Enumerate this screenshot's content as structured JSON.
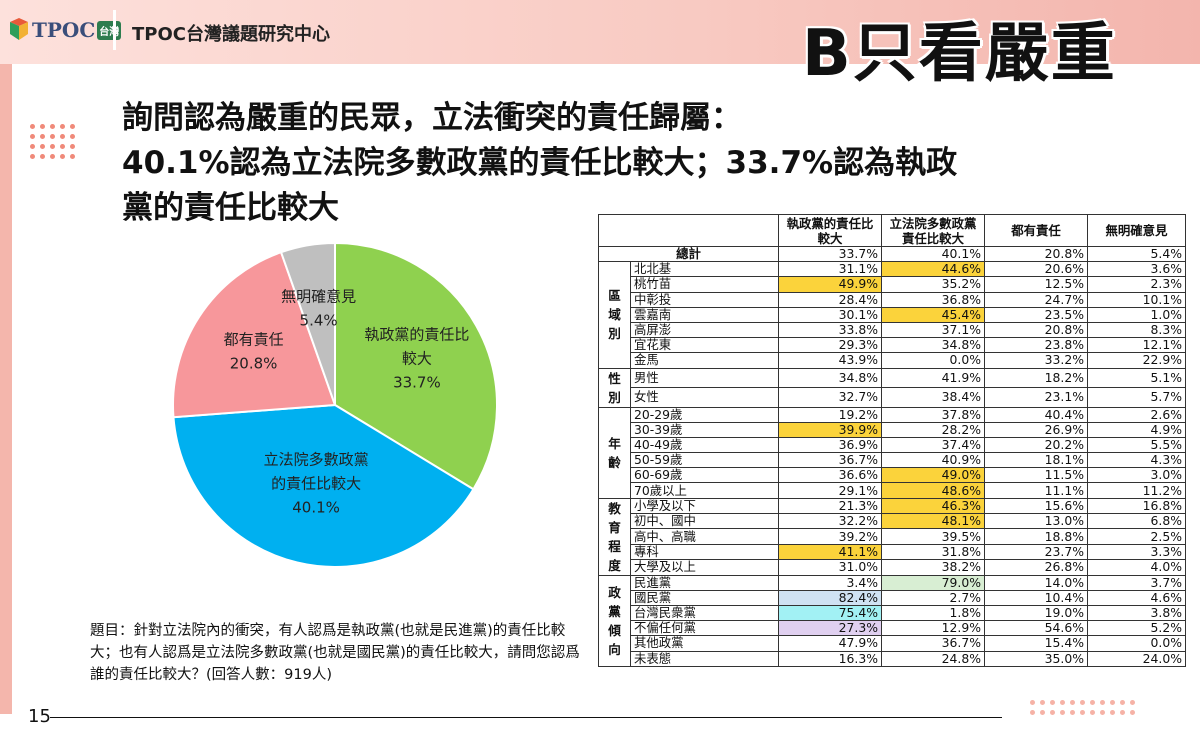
{
  "header": {
    "logo_text": "TPOC",
    "logo_badge": "台灣",
    "org_name": "TPOC台灣議題研究中心",
    "stamp": "B只看嚴重"
  },
  "headline": {
    "line1": "詢問認為嚴重的民眾，立法衝突的責任歸屬：",
    "line2": "40.1%認為立法院多數政黨的責任比較大；33.7%認為執政",
    "line3": "黨的責任比較大"
  },
  "chart_data": {
    "type": "pie",
    "slices": [
      {
        "label": "執政黨的責任比較大",
        "label_lines": [
          "執政黨的責任比",
          "較大"
        ],
        "value": 33.7,
        "value_text": "33.7%",
        "color": "#8fd14f"
      },
      {
        "label": "立法院多數政黨的責任比較大",
        "label_lines": [
          "立法院多數政黨",
          "的責任比較大"
        ],
        "value": 40.1,
        "value_text": "40.1%",
        "color": "#00b0f0"
      },
      {
        "label": "都有責任",
        "label_lines": [
          "都有責任"
        ],
        "value": 20.8,
        "value_text": "20.8%",
        "color": "#f7979b"
      },
      {
        "label": "無明確意見",
        "label_lines": [
          "無明確意見"
        ],
        "value": 5.4,
        "value_text": "5.4%",
        "color": "#bfbfbf"
      }
    ],
    "start_angle_deg": 0,
    "direction": "clockwise"
  },
  "note": {
    "text": "題目：針對立法院內的衝突，有人認爲是執政黨(也就是民進黨)的責任比較大；也有人認爲是立法院多數政黨(也就是國民黨)的責任比較大，請問您認爲誰的責任比較大？(回答人數：919人)"
  },
  "table": {
    "columns": [
      "執政黨的責任比較大",
      "立法院多數政黨責任比較大",
      "都有責任",
      "無明確意見"
    ],
    "total": {
      "label": "總計",
      "values": [
        "33.7%",
        "40.1%",
        "20.8%",
        "5.4%"
      ]
    },
    "groups": [
      {
        "name": "區域別",
        "rows": [
          {
            "label": "北北基",
            "values": [
              "31.1%",
              "44.6%",
              "20.6%",
              "3.6%"
            ],
            "hl": [
              null,
              "y",
              null,
              null
            ]
          },
          {
            "label": "桃竹苗",
            "values": [
              "49.9%",
              "35.2%",
              "12.5%",
              "2.3%"
            ],
            "hl": [
              "y",
              null,
              null,
              null
            ]
          },
          {
            "label": "中彰投",
            "values": [
              "28.4%",
              "36.8%",
              "24.7%",
              "10.1%"
            ],
            "hl": [
              null,
              null,
              null,
              null
            ]
          },
          {
            "label": "雲嘉南",
            "values": [
              "30.1%",
              "45.4%",
              "23.5%",
              "1.0%"
            ],
            "hl": [
              null,
              "y",
              null,
              null
            ]
          },
          {
            "label": "高屏澎",
            "values": [
              "33.8%",
              "37.1%",
              "20.8%",
              "8.3%"
            ],
            "hl": [
              null,
              null,
              null,
              null
            ]
          },
          {
            "label": "宜花東",
            "values": [
              "29.3%",
              "34.8%",
              "23.8%",
              "12.1%"
            ],
            "hl": [
              null,
              null,
              null,
              null
            ]
          },
          {
            "label": "金馬",
            "values": [
              "43.9%",
              "0.0%",
              "33.2%",
              "22.9%"
            ],
            "hl": [
              null,
              null,
              null,
              null
            ]
          }
        ]
      },
      {
        "name": "性別",
        "rows": [
          {
            "label": "男性",
            "values": [
              "34.8%",
              "41.9%",
              "18.2%",
              "5.1%"
            ],
            "hl": [
              null,
              null,
              null,
              null
            ]
          },
          {
            "label": "女性",
            "values": [
              "32.7%",
              "38.4%",
              "23.1%",
              "5.7%"
            ],
            "hl": [
              null,
              null,
              null,
              null
            ]
          }
        ]
      },
      {
        "name": "年齡",
        "rows": [
          {
            "label": "20-29歲",
            "values": [
              "19.2%",
              "37.8%",
              "40.4%",
              "2.6%"
            ],
            "hl": [
              null,
              null,
              null,
              null
            ]
          },
          {
            "label": "30-39歲",
            "values": [
              "39.9%",
              "28.2%",
              "26.9%",
              "4.9%"
            ],
            "hl": [
              "y",
              null,
              null,
              null
            ]
          },
          {
            "label": "40-49歲",
            "values": [
              "36.9%",
              "37.4%",
              "20.2%",
              "5.5%"
            ],
            "hl": [
              null,
              null,
              null,
              null
            ]
          },
          {
            "label": "50-59歲",
            "values": [
              "36.7%",
              "40.9%",
              "18.1%",
              "4.3%"
            ],
            "hl": [
              null,
              null,
              null,
              null
            ]
          },
          {
            "label": "60-69歲",
            "values": [
              "36.6%",
              "49.0%",
              "11.5%",
              "3.0%"
            ],
            "hl": [
              null,
              "y",
              null,
              null
            ]
          },
          {
            "label": "70歲以上",
            "values": [
              "29.1%",
              "48.6%",
              "11.1%",
              "11.2%"
            ],
            "hl": [
              null,
              "y",
              null,
              null
            ]
          }
        ]
      },
      {
        "name": "教育程度",
        "rows": [
          {
            "label": "小學及以下",
            "values": [
              "21.3%",
              "46.3%",
              "15.6%",
              "16.8%"
            ],
            "hl": [
              null,
              "y",
              null,
              null
            ]
          },
          {
            "label": "初中、國中",
            "values": [
              "32.2%",
              "48.1%",
              "13.0%",
              "6.8%"
            ],
            "hl": [
              null,
              "y",
              null,
              null
            ]
          },
          {
            "label": "高中、高職",
            "values": [
              "39.2%",
              "39.5%",
              "18.8%",
              "2.5%"
            ],
            "hl": [
              null,
              null,
              null,
              null
            ]
          },
          {
            "label": "專科",
            "values": [
              "41.1%",
              "31.8%",
              "23.7%",
              "3.3%"
            ],
            "hl": [
              "y",
              null,
              null,
              null
            ]
          },
          {
            "label": "大學及以上",
            "values": [
              "31.0%",
              "38.2%",
              "26.8%",
              "4.0%"
            ],
            "hl": [
              null,
              null,
              null,
              null
            ]
          }
        ]
      },
      {
        "name": "政黨傾向",
        "rows": [
          {
            "label": "民進黨",
            "values": [
              "3.4%",
              "79.0%",
              "14.0%",
              "3.7%"
            ],
            "hl": [
              null,
              "g",
              null,
              null
            ]
          },
          {
            "label": "國民黨",
            "values": [
              "82.4%",
              "2.7%",
              "10.4%",
              "4.6%"
            ],
            "hl": [
              "b",
              null,
              null,
              null
            ]
          },
          {
            "label": "台灣民衆黨",
            "values": [
              "75.4%",
              "1.8%",
              "19.0%",
              "3.8%"
            ],
            "hl": [
              "c",
              null,
              null,
              null
            ]
          },
          {
            "label": "不偏任何黨",
            "values": [
              "27.3%",
              "12.9%",
              "54.6%",
              "5.2%"
            ],
            "hl": [
              "p",
              null,
              null,
              null
            ]
          },
          {
            "label": "其他政黨",
            "values": [
              "47.9%",
              "36.7%",
              "15.4%",
              "0.0%"
            ],
            "hl": [
              null,
              null,
              null,
              null
            ]
          },
          {
            "label": "未表態",
            "values": [
              "16.3%",
              "24.8%",
              "35.0%",
              "24.0%"
            ],
            "hl": [
              null,
              null,
              null,
              null
            ]
          }
        ]
      }
    ]
  },
  "footer": {
    "page_number": "15"
  }
}
